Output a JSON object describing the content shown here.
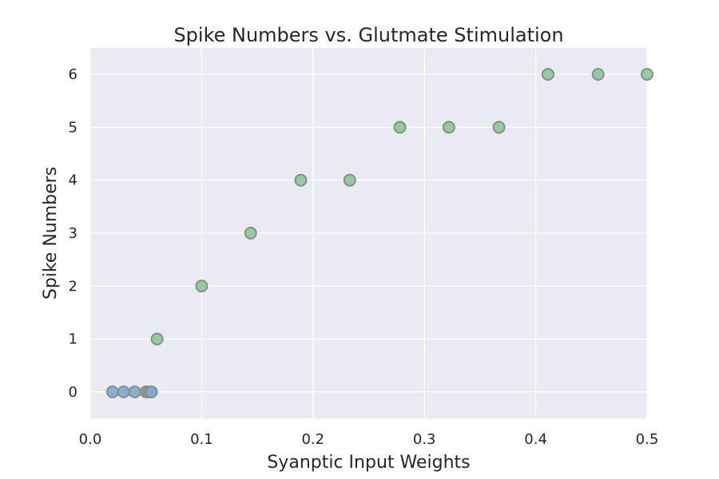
{
  "chart_data": {
    "type": "scatter",
    "title": "Spike Numbers vs. Glutmate Stimulation",
    "xlabel": "Syanptic Input Weights",
    "ylabel": "Spike Numbers",
    "xlim": [
      0.0,
      0.5
    ],
    "ylim": [
      -0.5,
      6.5
    ],
    "xticks": [
      "0.0",
      "0.1",
      "0.2",
      "0.3",
      "0.4",
      "0.5"
    ],
    "yticks": [
      "0",
      "1",
      "2",
      "3",
      "4",
      "5",
      "6"
    ],
    "grid": true,
    "background_color": "#eaeaf2",
    "series": [
      {
        "color": "#7fa8d0",
        "points": [
          {
            "x": 0.02,
            "y": 0
          },
          {
            "x": 0.03,
            "y": 0
          },
          {
            "x": 0.04,
            "y": 0
          },
          {
            "x": 0.05,
            "y": 0
          },
          {
            "x": 0.052,
            "y": 0
          },
          {
            "x": 0.054,
            "y": 0
          },
          {
            "x": 0.055,
            "y": 0
          }
        ]
      },
      {
        "color": "#87c995",
        "points": [
          {
            "x": 0.06,
            "y": 1
          },
          {
            "x": 0.1,
            "y": 2
          },
          {
            "x": 0.144,
            "y": 3
          },
          {
            "x": 0.189,
            "y": 4
          },
          {
            "x": 0.233,
            "y": 4
          },
          {
            "x": 0.278,
            "y": 5
          },
          {
            "x": 0.322,
            "y": 5
          },
          {
            "x": 0.367,
            "y": 5
          },
          {
            "x": 0.411,
            "y": 6
          },
          {
            "x": 0.456,
            "y": 6
          },
          {
            "x": 0.5,
            "y": 6
          }
        ]
      }
    ]
  }
}
